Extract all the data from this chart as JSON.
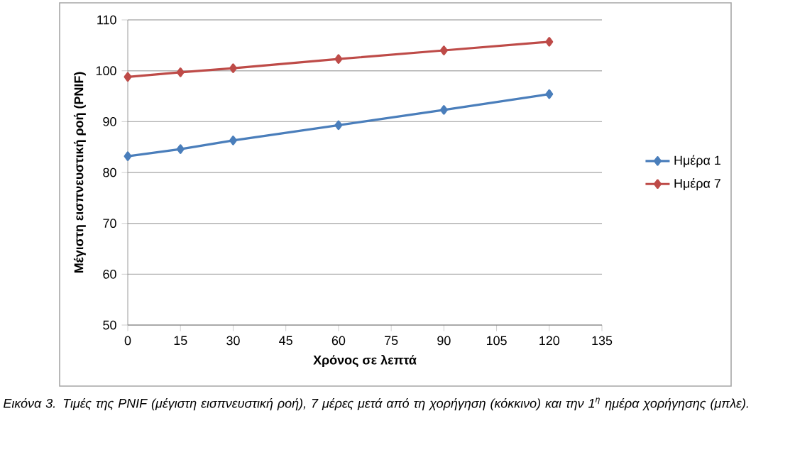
{
  "chart_data": {
    "type": "line",
    "x": [
      0,
      15,
      30,
      60,
      90,
      120
    ],
    "series": [
      {
        "name": "Ημέρα 1",
        "color": "#4a7ebb",
        "values": [
          83.2,
          84.6,
          86.3,
          89.3,
          92.3,
          95.4
        ]
      },
      {
        "name": "Ημέρα 7",
        "color": "#be4b48",
        "values": [
          98.8,
          99.7,
          100.5,
          102.3,
          104.0,
          105.7
        ]
      }
    ],
    "xlabel": "Χρόνος σε λεπτά",
    "ylabel": "Μέγιστη εισπνευστική ροή (PNIF)",
    "xlim": [
      0,
      135
    ],
    "xticks": [
      0,
      15,
      30,
      45,
      60,
      75,
      90,
      105,
      120,
      135
    ],
    "ylim": [
      50,
      110
    ],
    "yticks": [
      50,
      60,
      70,
      80,
      90,
      100,
      110
    ],
    "grid": "y",
    "legend": "right",
    "marker": "diamond",
    "line_style": "solid",
    "annotations": [
      "Εικόνα 3. Τιμές της PNIF (μέγιστη εισπνευστική ροή), 7 μέρες μετά από τη χορήγηση (κόκκινο) και την 1$^{η}$ ημέρα χορήγησης (μπλε)."
    ]
  }
}
